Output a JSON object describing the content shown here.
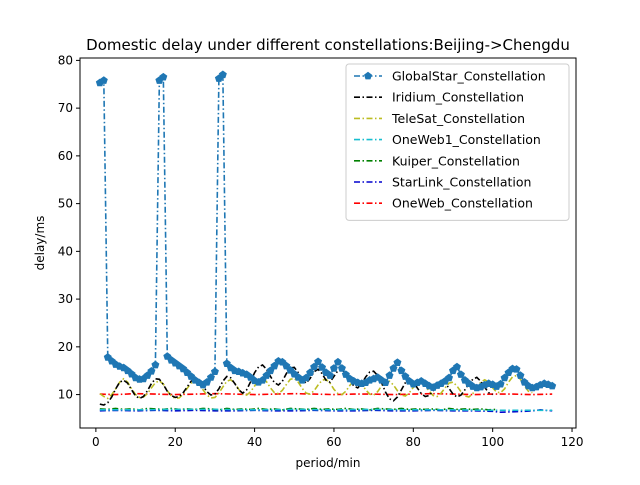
{
  "chart_data": {
    "type": "line",
    "title": "Domestic delay under different constellations:Beijing->Chengdu",
    "xlabel": "period/min",
    "ylabel": "delay/ms",
    "xlim": [
      -4,
      121
    ],
    "ylim": [
      3,
      80.5
    ],
    "xticks": [
      0,
      20,
      40,
      60,
      80,
      100,
      120
    ],
    "yticks": [
      10,
      20,
      30,
      40,
      50,
      60,
      70,
      80
    ],
    "xtick_labels": [
      "0",
      "20",
      "40",
      "60",
      "80",
      "100",
      "120"
    ],
    "ytick_labels": [
      "10",
      "20",
      "30",
      "40",
      "50",
      "60",
      "70",
      "80"
    ],
    "grid": false,
    "legend_position": "top-right",
    "series": [
      {
        "name": "GlobalStar_Constellation",
        "color": "#1f77b4",
        "marker": "pentagon",
        "x": [
          1,
          2,
          3,
          4,
          5,
          6,
          7,
          8,
          9,
          10,
          11,
          12,
          13,
          14,
          15,
          16,
          17,
          18,
          19,
          20,
          21,
          22,
          23,
          24,
          25,
          26,
          27,
          28,
          29,
          30,
          31,
          32,
          33,
          34,
          35,
          36,
          37,
          38,
          39,
          40,
          41,
          42,
          43,
          44,
          45,
          46,
          47,
          48,
          49,
          50,
          51,
          52,
          53,
          54,
          55,
          56,
          57,
          58,
          59,
          60,
          61,
          62,
          63,
          64,
          65,
          66,
          67,
          68,
          69,
          70,
          71,
          72,
          73,
          74,
          75,
          76,
          77,
          78,
          79,
          80,
          81,
          82,
          83,
          84,
          85,
          86,
          87,
          88,
          89,
          90,
          91,
          92,
          93,
          94,
          95,
          96,
          97,
          98,
          99,
          100,
          101,
          102,
          103,
          104,
          105,
          106,
          107,
          108,
          109,
          110,
          111,
          112,
          113,
          114,
          115
        ],
        "y": [
          75.3,
          75.8,
          17.8,
          17.0,
          16.3,
          15.9,
          15.6,
          15.0,
          14.3,
          13.5,
          13.2,
          13.3,
          14.0,
          14.9,
          16.2,
          75.8,
          76.5,
          18.0,
          17.2,
          16.6,
          16.0,
          15.4,
          14.6,
          13.8,
          13.0,
          12.5,
          12.0,
          12.6,
          13.6,
          14.8,
          76.2,
          77.0,
          16.5,
          15.6,
          15.0,
          14.8,
          14.5,
          14.2,
          13.6,
          12.9,
          12.6,
          13.0,
          14.0,
          15.0,
          16.0,
          17.0,
          16.8,
          16.0,
          15.1,
          14.3,
          13.6,
          13.0,
          13.5,
          14.6,
          15.8,
          16.9,
          15.7,
          14.6,
          14.0,
          15.5,
          16.8,
          15.5,
          14.2,
          13.3,
          12.8,
          12.5,
          12.3,
          12.5,
          13.0,
          13.3,
          13.6,
          13.0,
          12.5,
          14.0,
          15.5,
          16.7,
          15.0,
          13.8,
          12.8,
          12.2,
          12.5,
          12.8,
          12.3,
          11.8,
          11.5,
          11.9,
          12.3,
          12.8,
          13.5,
          15.0,
          15.8,
          14.2,
          13.0,
          12.3,
          11.7,
          11.4,
          11.6,
          12.0,
          12.3,
          12.1,
          11.7,
          12.2,
          13.5,
          14.6,
          15.4,
          15.3,
          14.0,
          12.6,
          11.8,
          11.4,
          11.6,
          12.0,
          12.3,
          12.1,
          11.8
        ]
      },
      {
        "name": "Iridium_Constellation",
        "color": "#000000",
        "marker": "none",
        "x": [
          1,
          2,
          3,
          4,
          5,
          6,
          7,
          8,
          9,
          10,
          11,
          12,
          13,
          14,
          15,
          16,
          17,
          18,
          19,
          20,
          21,
          22,
          23,
          24,
          25,
          26,
          27,
          28,
          29,
          30,
          31,
          32,
          33,
          34,
          35,
          36,
          37,
          38,
          39,
          40,
          41,
          42,
          43,
          44,
          45,
          46,
          47,
          48,
          49,
          50,
          51,
          52,
          53,
          54,
          55,
          56,
          57,
          58,
          59,
          60,
          61,
          62,
          63,
          64,
          65,
          66,
          67,
          68,
          69,
          70,
          71,
          72,
          73,
          74,
          75,
          76,
          77,
          78,
          79,
          80,
          81,
          82,
          83,
          84,
          85,
          86,
          87,
          88,
          89,
          90,
          91,
          92,
          93,
          94,
          95,
          96,
          97,
          98,
          99,
          100
        ],
        "y": [
          8.0,
          7.8,
          8.3,
          9.5,
          11.2,
          12.6,
          13.0,
          12.4,
          11.0,
          9.7,
          9.2,
          9.6,
          10.8,
          12.3,
          13.3,
          13.2,
          12.1,
          10.7,
          9.8,
          9.4,
          9.6,
          10.4,
          11.6,
          12.8,
          13.3,
          12.9,
          11.8,
          10.6,
          9.9,
          10.1,
          11.2,
          12.8,
          13.8,
          13.5,
          12.3,
          11.0,
          10.3,
          11.0,
          12.7,
          14.6,
          15.8,
          16.2,
          15.3,
          13.8,
          12.5,
          12.0,
          12.8,
          14.4,
          15.6,
          15.7,
          14.6,
          13.1,
          12.4,
          13.4,
          14.8,
          15.3,
          14.4,
          13.0,
          12.6,
          13.8,
          15.0,
          15.2,
          14.4,
          13.0,
          11.8,
          11.4,
          12.3,
          13.7,
          14.7,
          14.9,
          14.0,
          12.5,
          10.5,
          9.1,
          8.7,
          9.5,
          11.0,
          12.5,
          13.4,
          12.8,
          11.4,
          10.2,
          9.6,
          9.8,
          10.8,
          12.0,
          12.8,
          12.5,
          11.3,
          10.1,
          9.5,
          9.9,
          11.0,
          12.3,
          13.2,
          13.6,
          12.8,
          11.5,
          10.4,
          10.0
        ]
      },
      {
        "name": "TeleSat_Constellation",
        "color": "#bcbd22",
        "marker": "none",
        "x": [
          1,
          2,
          3,
          4,
          5,
          6,
          7,
          8,
          9,
          10,
          11,
          12,
          13,
          14,
          15,
          16,
          17,
          18,
          19,
          20,
          21,
          22,
          23,
          24,
          25,
          26,
          27,
          28,
          29,
          30,
          31,
          32,
          33,
          34,
          35,
          36,
          37,
          38,
          39,
          40,
          41,
          42,
          43,
          44,
          45,
          46,
          47,
          48,
          49,
          50,
          51,
          52,
          53,
          54,
          55,
          56,
          57,
          58,
          59,
          60,
          61,
          62,
          63,
          64,
          65,
          66,
          67,
          68,
          69,
          70,
          71,
          72,
          73,
          74,
          75,
          76,
          77,
          78,
          79,
          80,
          81,
          82,
          83,
          84,
          85,
          86,
          87,
          88,
          89,
          90,
          91,
          92,
          93,
          94,
          95,
          96,
          97,
          98,
          99,
          100,
          101,
          102,
          103,
          104,
          105,
          106,
          107,
          108,
          109,
          110
        ],
        "y": [
          10.2,
          9.6,
          9.2,
          10.0,
          11.2,
          12.6,
          13.3,
          12.6,
          11.2,
          10.0,
          9.4,
          9.5,
          10.2,
          11.4,
          12.5,
          12.9,
          12.2,
          10.8,
          9.7,
          9.2,
          9.3,
          10.1,
          11.3,
          12.4,
          12.9,
          12.3,
          11.0,
          9.9,
          9.3,
          9.4,
          10.3,
          11.6,
          12.8,
          13.1,
          12.4,
          11.1,
          10.1,
          9.9,
          10.6,
          11.8,
          13.0,
          13.4,
          12.7,
          11.4,
          10.4,
          10.2,
          10.9,
          12.1,
          13.2,
          13.4,
          12.6,
          11.3,
          10.3,
          10.1,
          10.8,
          12.0,
          13.0,
          13.2,
          12.4,
          11.1,
          10.2,
          10.0,
          10.7,
          11.9,
          12.9,
          13.0,
          12.2,
          11.0,
          10.1,
          9.9,
          10.6,
          11.8,
          12.7,
          12.8,
          12.0,
          10.8,
          9.9,
          9.7,
          10.4,
          11.5,
          12.4,
          12.6,
          11.9,
          10.7,
          9.8,
          9.6,
          10.3,
          11.4,
          12.4,
          12.6,
          11.8,
          10.6,
          9.7,
          9.5,
          10.2,
          11.4,
          12.6,
          13.1,
          12.6,
          11.4,
          10.5,
          10.4,
          11.2,
          12.6,
          13.7,
          14.0,
          13.2,
          11.8,
          10.7,
          10.4
        ]
      },
      {
        "name": "OneWeb1_Constellation",
        "color": "#17becf",
        "marker": "none",
        "x": [
          1,
          10,
          20,
          30,
          40,
          50,
          60,
          70,
          80,
          90,
          100,
          110,
          115
        ],
        "y": [
          6.8,
          6.8,
          6.9,
          6.9,
          6.8,
          6.9,
          6.8,
          6.9,
          6.8,
          6.8,
          6.7,
          6.7,
          6.7
        ]
      },
      {
        "name": "Kuiper_Constellation",
        "color": "#008000",
        "marker": "none",
        "x": [
          1,
          3,
          5,
          7,
          9,
          11,
          13,
          15,
          17,
          19,
          21,
          23,
          25,
          27,
          29,
          31,
          33,
          35,
          37,
          39,
          41,
          43,
          45,
          47,
          49,
          51,
          53,
          55,
          57,
          59,
          61,
          63,
          65,
          67,
          69,
          71,
          73,
          75,
          77,
          79,
          81,
          83,
          85,
          87,
          89,
          91,
          93,
          95,
          97,
          99,
          101
        ],
        "y": [
          7.0,
          6.9,
          7.1,
          6.9,
          7.0,
          6.8,
          7.1,
          7.0,
          6.9,
          7.1,
          6.9,
          7.0,
          6.9,
          7.1,
          7.0,
          6.8,
          7.1,
          6.9,
          7.0,
          6.9,
          7.1,
          6.9,
          7.0,
          6.8,
          7.1,
          7.0,
          6.9,
          7.1,
          6.9,
          7.0,
          6.9,
          7.1,
          6.9,
          7.0,
          6.8,
          7.1,
          7.0,
          6.9,
          7.1,
          6.9,
          7.0,
          6.9,
          7.0,
          6.8,
          7.1,
          6.9,
          7.0,
          6.9,
          7.0,
          6.8,
          6.9
        ]
      },
      {
        "name": "StarLink_Constellation",
        "color": "#0000cd",
        "marker": "none",
        "x": [
          1,
          5,
          10,
          15,
          20,
          25,
          30,
          35,
          40,
          45,
          50,
          55,
          60,
          65,
          70,
          75,
          80,
          85,
          90,
          95,
          100,
          102,
          105,
          108,
          110,
          112,
          115
        ],
        "y": [
          6.6,
          6.7,
          6.6,
          6.7,
          6.6,
          6.7,
          6.6,
          6.6,
          6.7,
          6.6,
          6.6,
          6.7,
          6.6,
          6.6,
          6.7,
          6.6,
          6.6,
          6.7,
          6.6,
          6.6,
          6.5,
          6.3,
          6.4,
          6.5,
          6.6,
          6.8,
          6.6
        ]
      },
      {
        "name": "OneWeb_Constellation",
        "color": "#ff0000",
        "marker": "none",
        "x": [
          1,
          5,
          10,
          15,
          20,
          25,
          30,
          35,
          40,
          45,
          50,
          55,
          60,
          65,
          70,
          75,
          80,
          85,
          90,
          95,
          100,
          105,
          110,
          115
        ],
        "y": [
          10.1,
          10.0,
          10.2,
          10.1,
          10.0,
          10.1,
          10.2,
          10.1,
          10.0,
          10.1,
          10.2,
          10.1,
          10.0,
          10.1,
          10.1,
          10.0,
          10.1,
          10.2,
          10.1,
          10.0,
          10.1,
          10.1,
          10.0,
          10.1
        ]
      }
    ]
  }
}
